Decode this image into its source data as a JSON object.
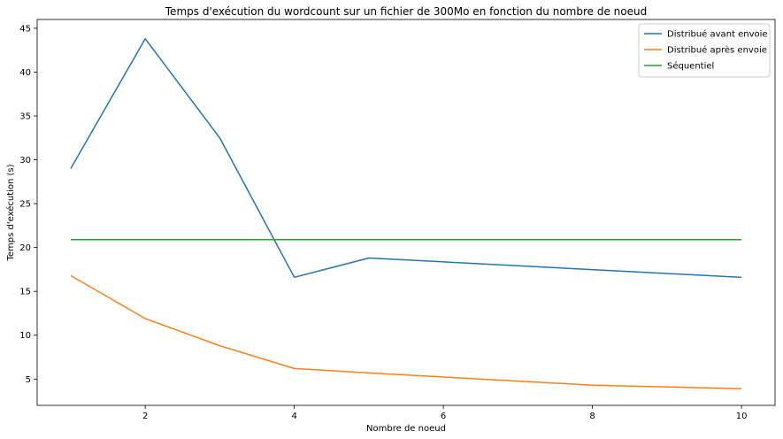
{
  "chart_data": {
    "type": "line",
    "title": "Temps d'exécution du wordcount sur un fichier de 300Mo en fonction du nombre de noeud",
    "xlabel": "Nombre de noeud",
    "ylabel": "Temps d'exécution (s)",
    "xlim": [
      0.55,
      10.45
    ],
    "ylim": [
      2.0,
      46.0
    ],
    "xticks": [
      2,
      4,
      6,
      8,
      10
    ],
    "yticks": [
      5,
      10,
      15,
      20,
      25,
      30,
      35,
      40,
      45
    ],
    "grid": false,
    "legend_position": "top-right",
    "series": [
      {
        "name": "Distribué avant envoie",
        "color": "#1f77b4",
        "x": [
          1,
          2,
          3,
          4,
          5,
          10
        ],
        "y": [
          29.0,
          43.8,
          32.5,
          16.6,
          18.8,
          16.6
        ]
      },
      {
        "name": "Distribué après envoie",
        "color": "#ff7f0e",
        "x": [
          1,
          2,
          3,
          4,
          5,
          8,
          10
        ],
        "y": [
          16.8,
          11.9,
          8.8,
          6.2,
          5.7,
          4.3,
          3.9
        ]
      },
      {
        "name": "Séquentiel",
        "color": "#2ca02c",
        "x": [
          1,
          10
        ],
        "y": [
          20.9,
          20.9
        ]
      }
    ]
  }
}
